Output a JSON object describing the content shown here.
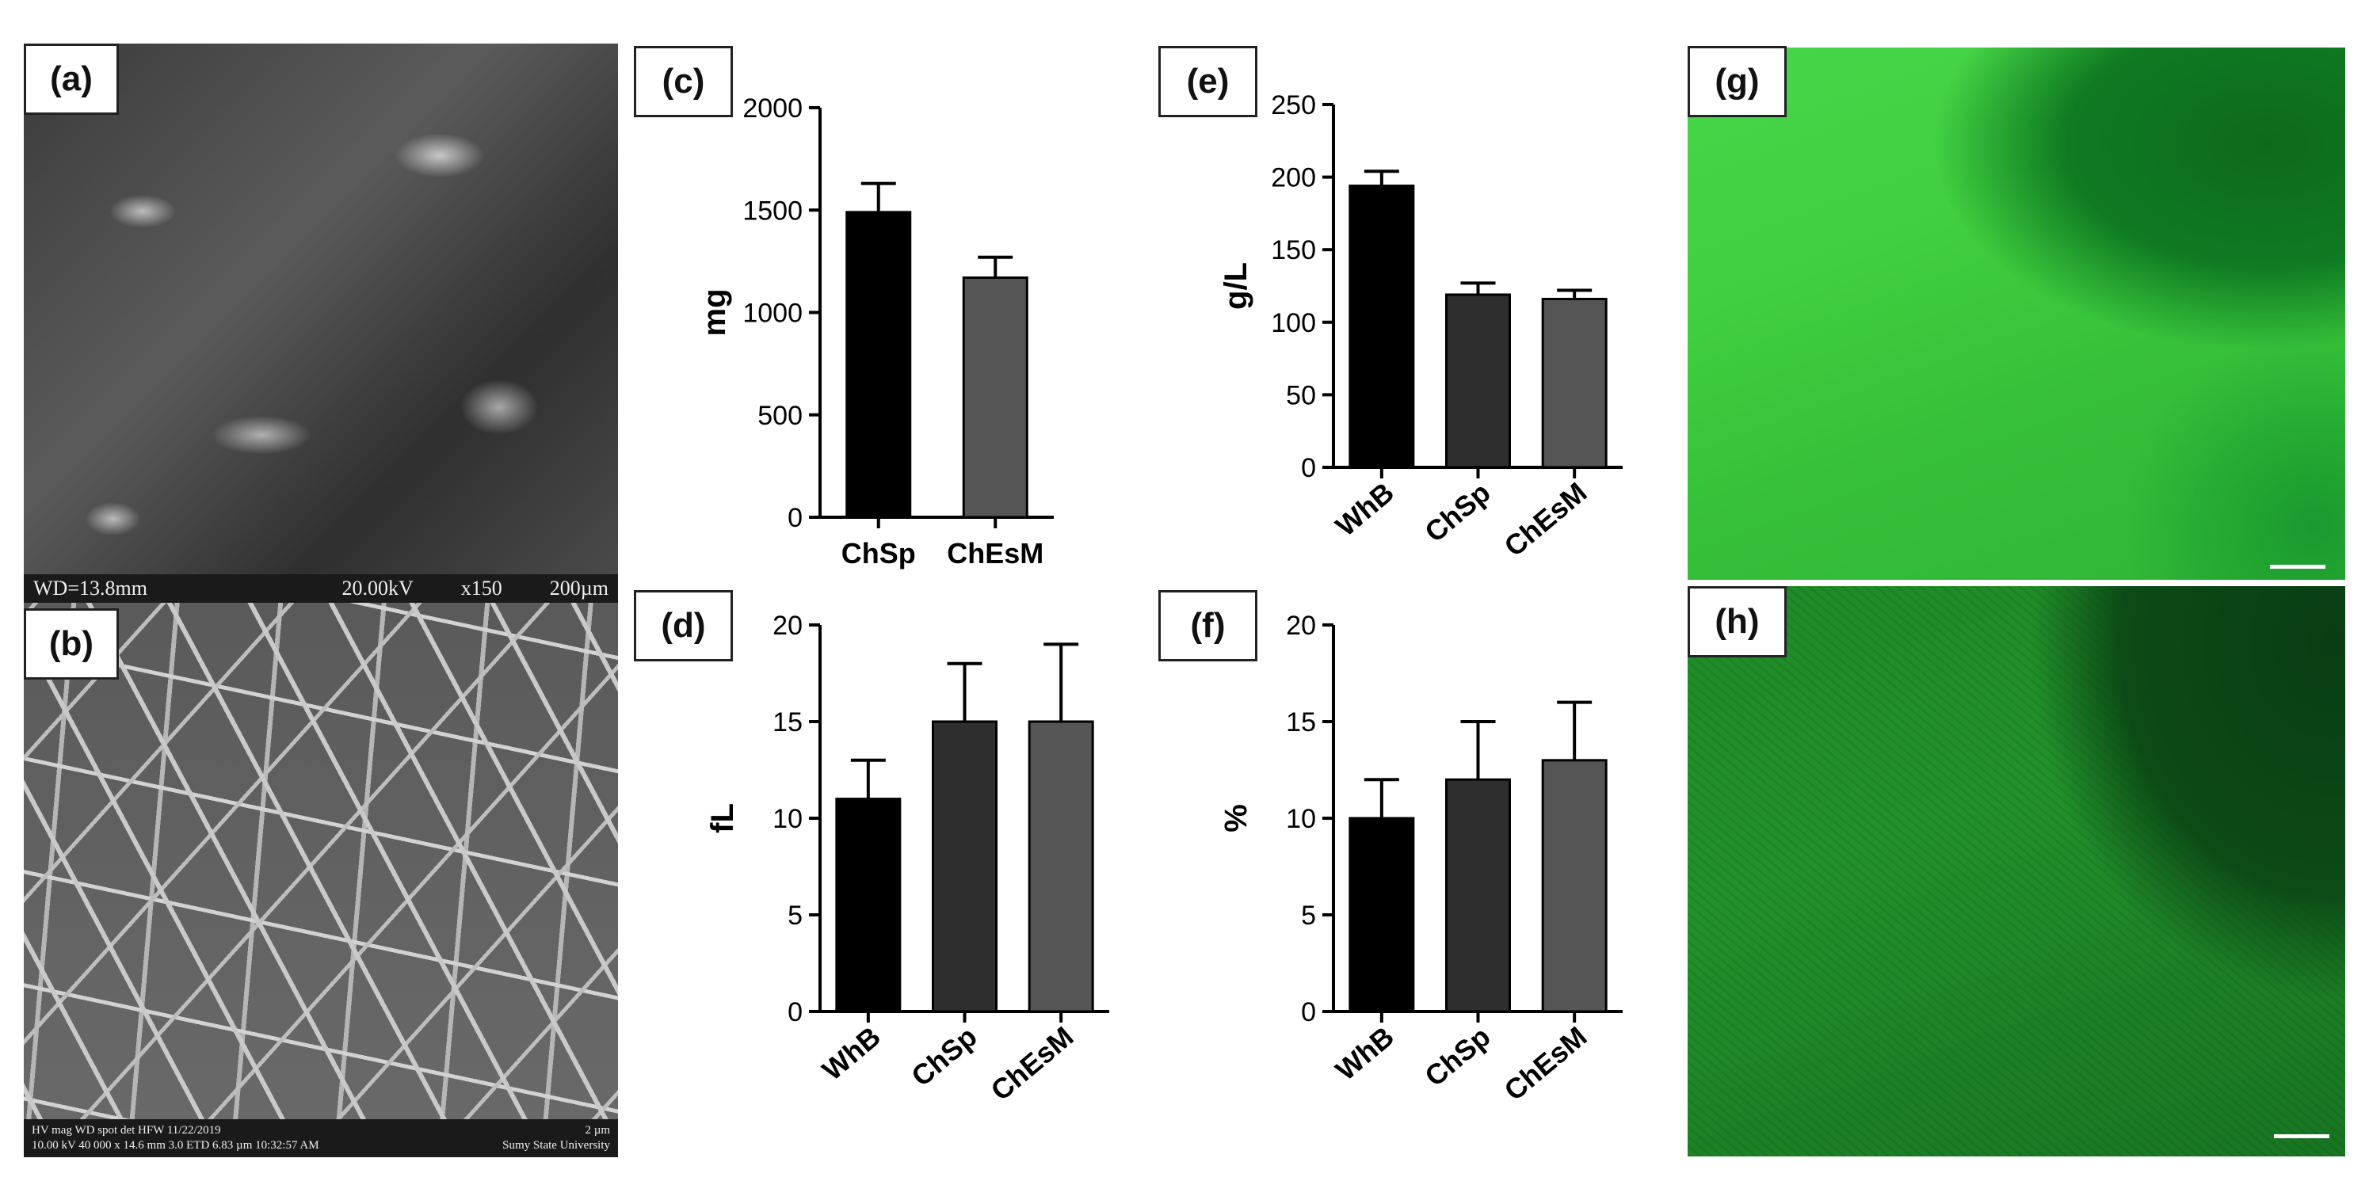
{
  "panels": {
    "a": {
      "label": "(a)",
      "sem_info": {
        "wd": "WD=13.8mm",
        "kv": "20.00kV",
        "mag": "x150",
        "scale": "200µm"
      }
    },
    "b": {
      "label": "(b)",
      "sem_info": {
        "line1": "HV  mag  WD  spot  det  HFW  11/22/2019",
        "scale": "2 µm",
        "line2": "10.00 kV 40 000 x 14.6 mm  3.0  ETD 6.83 µm 10:32:57 AM",
        "org": "Sumy State University"
      }
    },
    "c": {
      "label": "(c)"
    },
    "d": {
      "label": "(d)"
    },
    "e": {
      "label": "(e)"
    },
    "f": {
      "label": "(f)"
    },
    "g": {
      "label": "(g)"
    },
    "h": {
      "label": "(h)"
    }
  },
  "chart_data": [
    {
      "id": "c",
      "type": "bar",
      "categories": [
        "ChSp",
        "ChEsM"
      ],
      "values": [
        1490,
        1170
      ],
      "errors": [
        140,
        100
      ],
      "ylabel": "mg",
      "ylim": [
        0,
        2000
      ],
      "yticks": [
        0,
        500,
        1000,
        1500,
        2000
      ],
      "colors": [
        "#000000",
        "#555555"
      ],
      "rotate": false
    },
    {
      "id": "d",
      "type": "bar",
      "categories": [
        "WhB",
        "ChSp",
        "ChEsM"
      ],
      "values": [
        11,
        15,
        15
      ],
      "errors": [
        2,
        3,
        4
      ],
      "ylabel": "fL",
      "ylim": [
        0,
        20
      ],
      "yticks": [
        0,
        5,
        10,
        15,
        20
      ],
      "colors": [
        "#000000",
        "#2e2e2e",
        "#555555"
      ],
      "rotate": true
    },
    {
      "id": "e",
      "type": "bar",
      "categories": [
        "WhB",
        "ChSp",
        "ChEsM"
      ],
      "values": [
        194,
        119,
        116
      ],
      "errors": [
        10,
        8,
        6
      ],
      "ylabel": "g/L",
      "ylim": [
        0,
        250
      ],
      "yticks": [
        0,
        50,
        100,
        150,
        200,
        250
      ],
      "colors": [
        "#000000",
        "#2e2e2e",
        "#555555"
      ],
      "rotate": true
    },
    {
      "id": "f",
      "type": "bar",
      "categories": [
        "WhB",
        "ChSp",
        "ChEsM"
      ],
      "values": [
        10,
        12,
        13
      ],
      "errors": [
        2,
        3,
        3
      ],
      "ylabel": "%",
      "ylim": [
        0,
        20
      ],
      "yticks": [
        0,
        5,
        10,
        15,
        20
      ],
      "colors": [
        "#000000",
        "#2e2e2e",
        "#555555"
      ],
      "rotate": true
    }
  ]
}
